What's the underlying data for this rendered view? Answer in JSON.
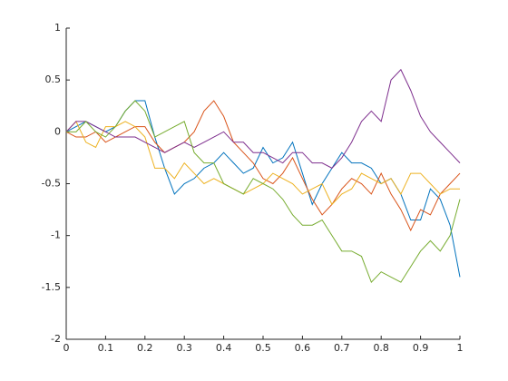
{
  "chart_data": {
    "type": "line",
    "x": [
      0,
      0.025,
      0.05,
      0.075,
      0.1,
      0.125,
      0.15,
      0.175,
      0.2,
      0.225,
      0.25,
      0.275,
      0.3,
      0.325,
      0.35,
      0.375,
      0.4,
      0.425,
      0.45,
      0.475,
      0.5,
      0.525,
      0.55,
      0.575,
      0.6,
      0.625,
      0.65,
      0.675,
      0.7,
      0.725,
      0.75,
      0.775,
      0.8,
      0.825,
      0.85,
      0.875,
      0.9,
      0.925,
      0.95,
      0.975,
      1
    ],
    "series": [
      {
        "color": "#0072bd",
        "values": [
          0,
          0.05,
          0.1,
          0.05,
          0,
          0.05,
          0.2,
          0.3,
          0.3,
          -0.05,
          -0.35,
          -0.6,
          -0.5,
          -0.45,
          -0.35,
          -0.3,
          -0.2,
          -0.3,
          -0.4,
          -0.35,
          -0.15,
          -0.3,
          -0.25,
          -0.1,
          -0.4,
          -0.7,
          -0.5,
          -0.35,
          -0.2,
          -0.3,
          -0.3,
          -0.35,
          -0.5,
          -0.45,
          -0.6,
          -0.85,
          -0.85,
          -0.55,
          -0.65,
          -0.9,
          -1.4
        ]
      },
      {
        "color": "#d95319",
        "values": [
          0,
          -0.05,
          -0.05,
          0,
          -0.1,
          -0.05,
          0,
          0.05,
          0.05,
          -0.1,
          -0.2,
          -0.15,
          -0.1,
          0,
          0.2,
          0.3,
          0.15,
          -0.1,
          -0.2,
          -0.3,
          -0.45,
          -0.5,
          -0.4,
          -0.25,
          -0.45,
          -0.65,
          -0.8,
          -0.7,
          -0.55,
          -0.45,
          -0.5,
          -0.6,
          -0.4,
          -0.6,
          -0.75,
          -0.95,
          -0.75,
          -0.8,
          -0.6,
          -0.5,
          -0.4
        ]
      },
      {
        "color": "#edb120",
        "values": [
          0,
          0.1,
          -0.1,
          -0.15,
          0.05,
          0.05,
          0.1,
          0.05,
          -0.05,
          -0.35,
          -0.35,
          -0.45,
          -0.3,
          -0.4,
          -0.5,
          -0.45,
          -0.5,
          -0.55,
          -0.6,
          -0.55,
          -0.5,
          -0.4,
          -0.45,
          -0.5,
          -0.6,
          -0.55,
          -0.5,
          -0.7,
          -0.6,
          -0.55,
          -0.4,
          -0.45,
          -0.5,
          -0.45,
          -0.6,
          -0.4,
          -0.4,
          -0.5,
          -0.6,
          -0.55,
          -0.55
        ]
      },
      {
        "color": "#7e2f8e",
        "values": [
          0,
          0.1,
          0.1,
          0.05,
          0,
          -0.05,
          -0.05,
          -0.05,
          -0.1,
          -0.15,
          -0.2,
          -0.15,
          -0.1,
          -0.15,
          -0.1,
          -0.05,
          0,
          -0.1,
          -0.1,
          -0.2,
          -0.2,
          -0.25,
          -0.3,
          -0.2,
          -0.2,
          -0.3,
          -0.3,
          -0.35,
          -0.25,
          -0.1,
          0.1,
          0.2,
          0.1,
          0.5,
          0.6,
          0.4,
          0.15,
          0,
          -0.1,
          -0.2,
          -0.3
        ]
      },
      {
        "color": "#77ac30",
        "values": [
          0,
          0,
          0.1,
          0,
          -0.05,
          0.05,
          0.2,
          0.3,
          0.2,
          -0.05,
          0,
          0.05,
          0.1,
          -0.2,
          -0.3,
          -0.3,
          -0.5,
          -0.55,
          -0.6,
          -0.45,
          -0.5,
          -0.55,
          -0.65,
          -0.8,
          -0.9,
          -0.9,
          -0.85,
          -1.0,
          -1.15,
          -1.15,
          -1.2,
          -1.45,
          -1.35,
          -1.4,
          -1.45,
          -1.3,
          -1.15,
          -1.05,
          -1.15,
          -1.0,
          -0.65
        ]
      }
    ],
    "xlim": [
      0,
      1
    ],
    "xticks": [
      0,
      0.1,
      0.2,
      0.3,
      0.4,
      0.5,
      0.6,
      0.7,
      0.8,
      0.9,
      1
    ],
    "ylim": [
      -2,
      1
    ],
    "yticks": [
      -2,
      -1.5,
      -1,
      -0.5,
      0,
      0.5,
      1
    ],
    "grid": false
  }
}
